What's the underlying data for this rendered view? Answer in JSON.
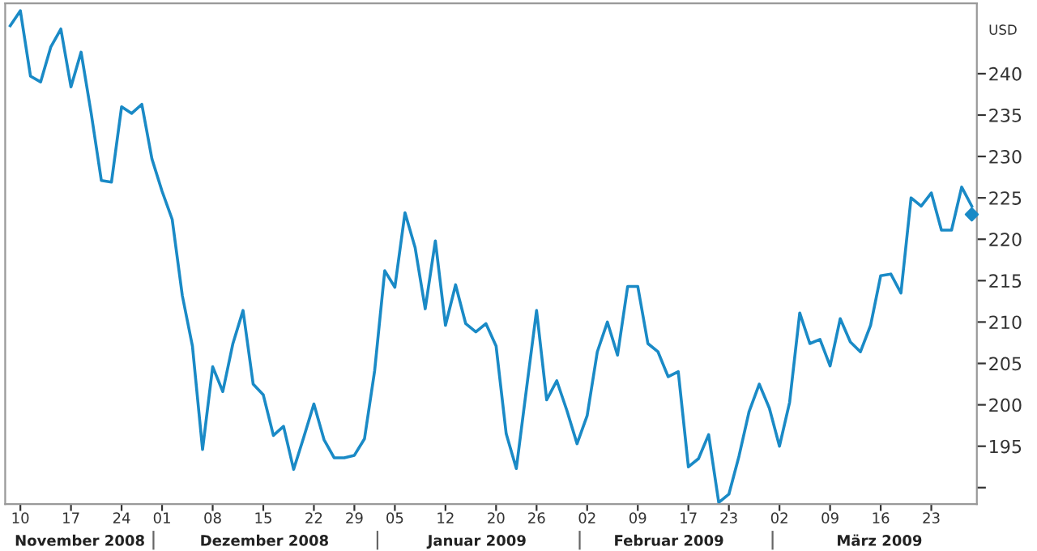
{
  "chart_data": {
    "type": "line",
    "ylabel": "USD",
    "categories": [
      null,
      "10",
      null,
      null,
      null,
      null,
      "17",
      null,
      null,
      null,
      null,
      "24",
      null,
      null,
      null,
      "01",
      null,
      null,
      null,
      null,
      "08",
      null,
      null,
      null,
      null,
      "15",
      null,
      null,
      null,
      null,
      "22",
      null,
      null,
      null,
      "29",
      null,
      null,
      null,
      "05",
      null,
      null,
      null,
      null,
      "12",
      null,
      null,
      null,
      null,
      "20",
      null,
      null,
      null,
      "26",
      null,
      null,
      null,
      null,
      "02",
      null,
      null,
      null,
      null,
      "09",
      null,
      null,
      null,
      null,
      "17",
      null,
      null,
      null,
      "23",
      null,
      null,
      null,
      null,
      "02",
      null,
      null,
      null,
      null,
      "09",
      null,
      null,
      null,
      null,
      "16",
      null,
      null,
      null,
      null,
      "23",
      null,
      null,
      null,
      null
    ],
    "series": [
      {
        "color": "#1a8ac6",
        "values": [
          245.8,
          247.6,
          239.7,
          239.0,
          243.2,
          245.4,
          238.4,
          242.6,
          235.2,
          227.1,
          226.9,
          236.0,
          235.2,
          236.3,
          229.7,
          225.8,
          222.4,
          213.2,
          207.1,
          194.6,
          204.6,
          201.6,
          207.4,
          211.4,
          202.5,
          201.2,
          196.3,
          197.4,
          192.2,
          196.1,
          200.1,
          195.8,
          193.6,
          193.6,
          193.9,
          195.9,
          204.1,
          216.2,
          214.2,
          223.2,
          219.0,
          211.6,
          219.8,
          209.6,
          214.5,
          209.8,
          208.8,
          209.8,
          207.1,
          196.5,
          192.3,
          201.9,
          211.4,
          200.6,
          202.9,
          199.3,
          195.3,
          198.7,
          206.4,
          210.0,
          206.0,
          214.3,
          214.3,
          207.4,
          206.4,
          203.4,
          204.0,
          192.5,
          193.5,
          196.4,
          188.2,
          189.2,
          193.8,
          199.2,
          202.5,
          199.6,
          195.0,
          200.3,
          211.1,
          207.4,
          207.9,
          204.7,
          210.4,
          207.6,
          206.4,
          209.6,
          215.6,
          215.8,
          213.5,
          225.0,
          224.0,
          225.6,
          221.1,
          221.1,
          226.3,
          224.0
        ]
      },
      {
        "type": "scatter",
        "color": "#1a8ac6",
        "marker": "diamond",
        "values": [
          null,
          null,
          null,
          null,
          null,
          null,
          null,
          null,
          null,
          null,
          null,
          null,
          null,
          null,
          null,
          null,
          null,
          null,
          null,
          null,
          null,
          null,
          null,
          null,
          null,
          null,
          null,
          null,
          null,
          null,
          null,
          null,
          null,
          null,
          null,
          null,
          null,
          null,
          null,
          null,
          null,
          null,
          null,
          null,
          null,
          null,
          null,
          null,
          null,
          null,
          null,
          null,
          null,
          null,
          null,
          null,
          null,
          null,
          null,
          null,
          null,
          null,
          null,
          null,
          null,
          null,
          null,
          null,
          null,
          null,
          null,
          null,
          null,
          null,
          null,
          null,
          null,
          null,
          null,
          null,
          null,
          null,
          null,
          null,
          null,
          null,
          null,
          null,
          null,
          null,
          null,
          null,
          null,
          null,
          null,
          223.0
        ]
      }
    ],
    "ylim": [
      188,
      248.5
    ],
    "yticks": [
      {
        "value": 190,
        "label": null
      },
      195,
      200,
      205,
      210,
      215,
      220,
      225,
      230,
      235,
      240
    ],
    "grid": false,
    "legend": false,
    "annotations": [
      "November 2008",
      "Dezember 2008",
      "Januar 2009",
      "Februar 2009",
      "März 2009"
    ]
  }
}
